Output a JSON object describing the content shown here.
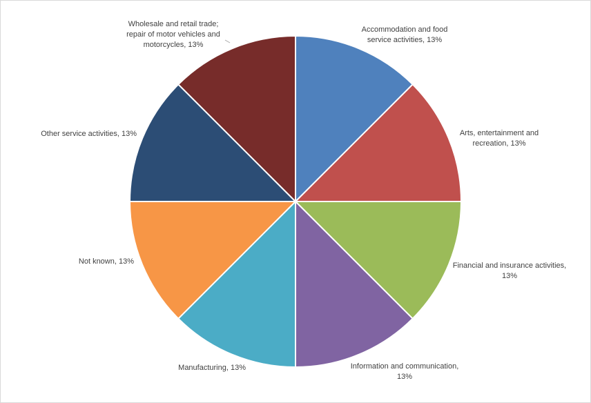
{
  "chart_data": {
    "type": "pie",
    "start_angle": "12 o'clock",
    "direction": "clockwise",
    "slices": [
      {
        "name": "Accommodation and food service activities",
        "value": 12.5,
        "label_lines": [
          "Accommodation and food",
          "service activities, 13%"
        ],
        "color": "#4F81BD"
      },
      {
        "name": "Arts, entertainment and recreation",
        "value": 12.5,
        "label_lines": [
          "Arts, entertainment and",
          "recreation, 13%"
        ],
        "color": "#C0504D"
      },
      {
        "name": "Financial and insurance activities",
        "value": 12.5,
        "label_lines": [
          "Financial and insurance activities,",
          "13%"
        ],
        "color": "#9BBB59"
      },
      {
        "name": "Information and communication",
        "value": 12.5,
        "label_lines": [
          "Information and communication,",
          "13%"
        ],
        "color": "#8064A2"
      },
      {
        "name": "Manufacturing",
        "value": 12.5,
        "label_lines": [
          "Manufacturing, 13%"
        ],
        "color": "#4BACC6"
      },
      {
        "name": "Not known",
        "value": 12.5,
        "label_lines": [
          "Not known, 13%"
        ],
        "color": "#F79646"
      },
      {
        "name": "Other service activities",
        "value": 12.5,
        "label_lines": [
          "Other service activities, 13%"
        ],
        "color": "#2C4D75"
      },
      {
        "name": "Wholesale and retail trade; repair of motor vehicles and motorcycles",
        "value": 12.5,
        "label_lines": [
          "Wholesale and retail trade;",
          "repair of motor vehicles and",
          "motorcycles, 13%"
        ],
        "color": "#772C2A"
      }
    ]
  }
}
